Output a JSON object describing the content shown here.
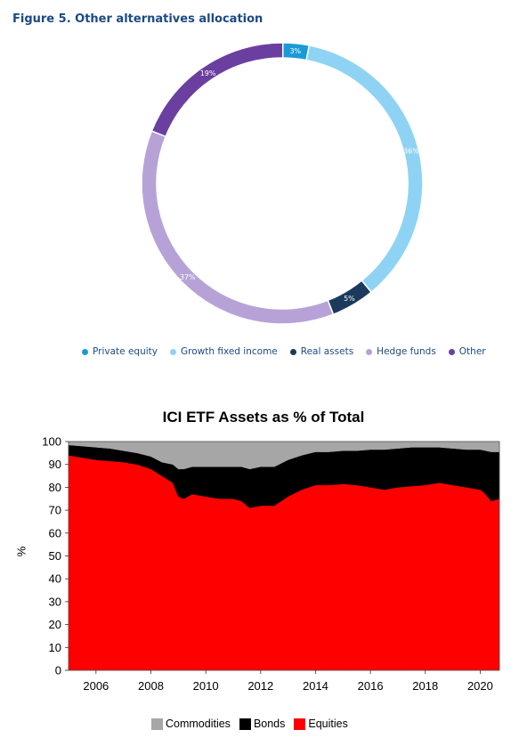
{
  "figures": {
    "donut_title": "Figure 5. Other alternatives allocation",
    "area_title": "ICI ETF Assets as % of Total",
    "area_ylabel": "%"
  },
  "chart_data": [
    {
      "type": "pie",
      "title": "Figure 5. Other alternatives allocation",
      "donut": true,
      "categories": [
        "Private equity",
        "Growth fixed income",
        "Real assets",
        "Hedge funds",
        "Other"
      ],
      "values": [
        3,
        36,
        5,
        37,
        19
      ],
      "labels": [
        "3%",
        "36%",
        "5%",
        "37%",
        "19%"
      ],
      "colors": [
        "#1a9ad6",
        "#8fd3f4",
        "#1b3a5c",
        "#b7a2d8",
        "#6b3fa0"
      ],
      "legend": "bottom"
    },
    {
      "type": "area",
      "stacked": true,
      "title": "ICI ETF Assets as % of Total",
      "xlabel": "",
      "ylabel": "%",
      "xlim": [
        2005.0,
        2020.7
      ],
      "ylim": [
        0,
        100
      ],
      "xticks": [
        2006,
        2008,
        2010,
        2012,
        2014,
        2016,
        2018,
        2020
      ],
      "yticks": [
        0,
        10,
        20,
        30,
        40,
        50,
        60,
        70,
        80,
        90,
        100
      ],
      "x": [
        2005.0,
        2005.5,
        2006.0,
        2006.5,
        2007.0,
        2007.5,
        2008.0,
        2008.4,
        2008.8,
        2009.0,
        2009.2,
        2009.5,
        2010.0,
        2010.5,
        2011.0,
        2011.3,
        2011.6,
        2012.0,
        2012.5,
        2013.0,
        2013.5,
        2014.0,
        2014.5,
        2015.0,
        2015.5,
        2016.0,
        2016.5,
        2017.0,
        2017.5,
        2018.0,
        2018.5,
        2019.0,
        2019.5,
        2020.0,
        2020.2,
        2020.4,
        2020.7
      ],
      "series": [
        {
          "name": "Equities",
          "color": "#ff0000",
          "values": [
            94,
            93,
            92,
            91.5,
            91,
            90,
            88,
            85,
            82,
            76,
            75,
            77,
            76,
            75,
            75,
            74,
            71,
            72,
            72,
            76,
            79,
            81,
            81,
            81.5,
            81,
            80,
            79,
            80,
            80.5,
            81,
            82,
            81,
            80,
            79,
            77,
            74,
            75
          ]
        },
        {
          "name": "Bonds",
          "color": "#000000",
          "values": [
            4.5,
            5,
            5.5,
            5.5,
            5,
            5,
            5.5,
            6,
            8,
            12,
            13,
            12,
            13,
            14,
            14,
            15,
            17,
            17,
            17,
            16,
            15,
            14.5,
            14.5,
            14.5,
            15,
            16.5,
            17.5,
            17,
            17,
            16.5,
            15.5,
            16,
            16.5,
            17.5,
            19,
            21.5,
            20.5
          ]
        },
        {
          "name": "Commodities",
          "color": "#a6a6a6",
          "values": [
            1.5,
            2,
            2.5,
            3,
            4,
            5,
            6.5,
            9,
            10,
            12,
            12,
            11,
            11,
            11,
            11,
            11,
            12,
            11,
            11,
            8,
            6,
            4.5,
            4.5,
            4,
            4,
            3.5,
            3.5,
            3,
            2.5,
            2.5,
            2.5,
            3,
            3.5,
            3.5,
            4,
            4.5,
            4.5
          ]
        }
      ],
      "legend": "bottom"
    }
  ]
}
